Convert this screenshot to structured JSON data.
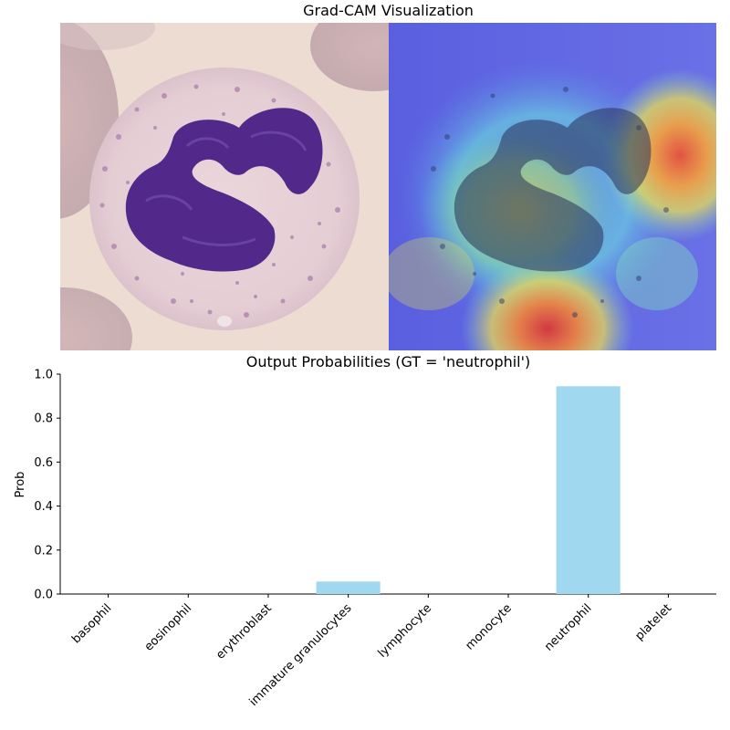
{
  "top_panel": {
    "title": "Grad-CAM Visualization"
  },
  "chart_data": {
    "type": "bar",
    "title": "Output Probabilities (GT = 'neutrophil')",
    "xlabel": "",
    "ylabel": "Prob",
    "ylim": [
      0,
      1.0
    ],
    "yticks": [
      0.0,
      0.2,
      0.4,
      0.6,
      0.8,
      1.0
    ],
    "ytick_labels": [
      "0.0",
      "0.2",
      "0.4",
      "0.6",
      "0.8",
      "1.0"
    ],
    "categories": [
      "basophil",
      "eosinophil",
      "erythroblast",
      "immature granulocytes",
      "lymphocyte",
      "monocyte",
      "neutrophil",
      "platelet"
    ],
    "values": [
      0.0,
      0.0,
      0.0,
      0.057,
      0.0,
      0.0,
      0.945,
      0.0
    ],
    "bar_color": "#a0d8ef",
    "grid": false,
    "legend": "none"
  }
}
